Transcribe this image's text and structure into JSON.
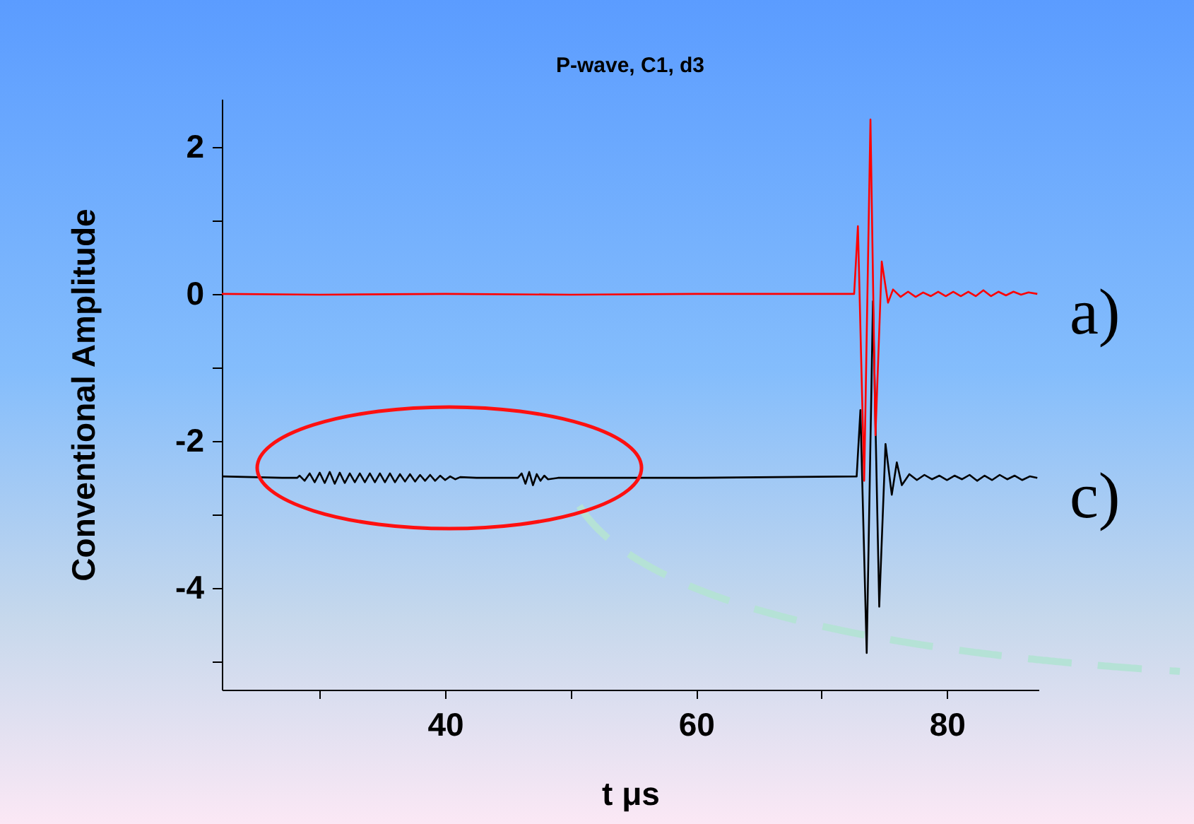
{
  "chart_data": {
    "type": "line",
    "title": "P-wave, C1, d3",
    "xlabel": "t μs",
    "ylabel": "Conventional Amplitude",
    "xlim": [
      22.2,
      87.3
    ],
    "xticks": [
      {
        "value": 30,
        "label": null
      },
      40,
      {
        "value": 50,
        "label": null
      },
      60,
      {
        "value": 70,
        "label": null
      },
      80
    ],
    "ylim": [
      -5.38,
      2.65
    ],
    "yticks": [
      {
        "value": -5,
        "label": null
      },
      -4,
      {
        "value": -3,
        "label": null
      },
      -2,
      {
        "value": -1,
        "label": null
      },
      0,
      {
        "value": 1,
        "label": null
      },
      2
    ],
    "grid": false,
    "legend": false,
    "marker": "none",
    "line_style": "solid",
    "series": [
      {
        "name": "a)",
        "color": "#ff0000",
        "x": [
          22.2,
          30,
          40,
          50,
          60,
          70,
          72.6,
          72.9,
          73.4,
          73.9,
          74.3,
          74.8,
          75.3,
          75.7,
          76.3,
          76.9,
          77.5,
          78.1,
          78.7,
          79.3,
          79.9,
          80.5,
          81.1,
          81.7,
          82.3,
          82.9,
          83.5,
          84.1,
          84.7,
          85.3,
          85.9,
          86.5,
          87.2
        ],
        "values": [
          0,
          -0.01,
          0,
          -0.01,
          0,
          0,
          0,
          0.92,
          -2.54,
          2.37,
          -1.92,
          0.44,
          -0.12,
          0.06,
          -0.04,
          0.03,
          -0.04,
          0.02,
          -0.03,
          0.03,
          -0.03,
          0.03,
          -0.03,
          0.03,
          -0.03,
          0.05,
          -0.03,
          0.03,
          -0.02,
          0.03,
          -0.01,
          0.02,
          0
        ]
      },
      {
        "name": "c)",
        "color": "#000000",
        "x": [
          22.2,
          27,
          28.2,
          28.4,
          28.8,
          29.2,
          29.6,
          30.0,
          30.4,
          30.8,
          31.2,
          31.6,
          32.0,
          32.4,
          32.8,
          33.2,
          33.6,
          34.0,
          34.4,
          34.8,
          35.2,
          35.6,
          36.0,
          36.4,
          36.8,
          37.2,
          37.6,
          38.0,
          38.4,
          38.8,
          39.2,
          39.6,
          40.0,
          40.4,
          40.8,
          41.2,
          42.5,
          45.8,
          46.1,
          46.4,
          46.7,
          47.0,
          47.3,
          47.6,
          47.9,
          48.2,
          49.0,
          60,
          72.8,
          73.1,
          73.6,
          74.1,
          74.6,
          75.1,
          75.6,
          76.0,
          76.4,
          77.0,
          77.6,
          78.2,
          78.8,
          79.4,
          80.0,
          80.6,
          81.2,
          81.8,
          82.4,
          83.0,
          83.6,
          84.2,
          84.8,
          85.4,
          86.0,
          86.6,
          87.2
        ],
        "values": [
          -2.48,
          -2.5,
          -2.5,
          -2.47,
          -2.54,
          -2.44,
          -2.56,
          -2.43,
          -2.57,
          -2.42,
          -2.58,
          -2.43,
          -2.57,
          -2.44,
          -2.56,
          -2.44,
          -2.56,
          -2.44,
          -2.56,
          -2.44,
          -2.56,
          -2.44,
          -2.56,
          -2.45,
          -2.55,
          -2.45,
          -2.55,
          -2.46,
          -2.54,
          -2.46,
          -2.54,
          -2.47,
          -2.53,
          -2.48,
          -2.52,
          -2.49,
          -2.5,
          -2.5,
          -2.44,
          -2.58,
          -2.42,
          -2.6,
          -2.45,
          -2.54,
          -2.47,
          -2.52,
          -2.5,
          -2.5,
          -2.48,
          -1.58,
          -4.88,
          -0.1,
          -4.25,
          -2.04,
          -2.73,
          -2.29,
          -2.6,
          -2.45,
          -2.53,
          -2.46,
          -2.52,
          -2.47,
          -2.53,
          -2.47,
          -2.52,
          -2.46,
          -2.54,
          -2.47,
          -2.53,
          -2.46,
          -2.52,
          -2.47,
          -2.53,
          -2.48,
          -2.5
        ]
      }
    ]
  }
}
